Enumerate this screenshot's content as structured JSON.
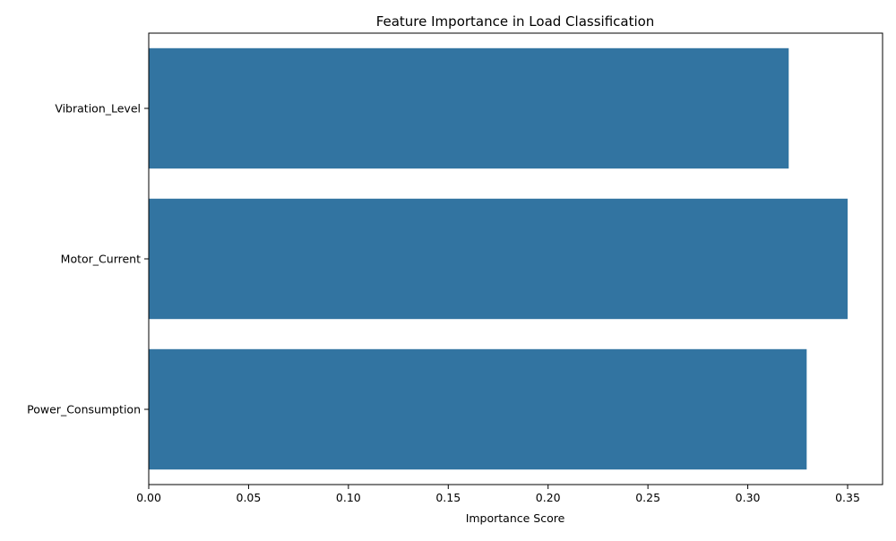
{
  "chart_data": {
    "type": "bar",
    "orientation": "horizontal",
    "title": "Feature Importance in Load Classification",
    "xlabel": "Importance Score",
    "ylabel": "",
    "categories": [
      "Vibration_Level",
      "Motor_Current",
      "Power_Consumption"
    ],
    "values": [
      0.3205,
      0.35,
      0.3295
    ],
    "xlim": [
      0,
      0.3675
    ],
    "xticks": [
      0.0,
      0.05,
      0.1,
      0.15,
      0.2,
      0.25,
      0.3,
      0.35
    ],
    "xtick_labels": [
      "0.00",
      "0.05",
      "0.10",
      "0.15",
      "0.20",
      "0.25",
      "0.30",
      "0.35"
    ],
    "grid": false,
    "legend": "none",
    "bar_color": "#3274a1"
  }
}
